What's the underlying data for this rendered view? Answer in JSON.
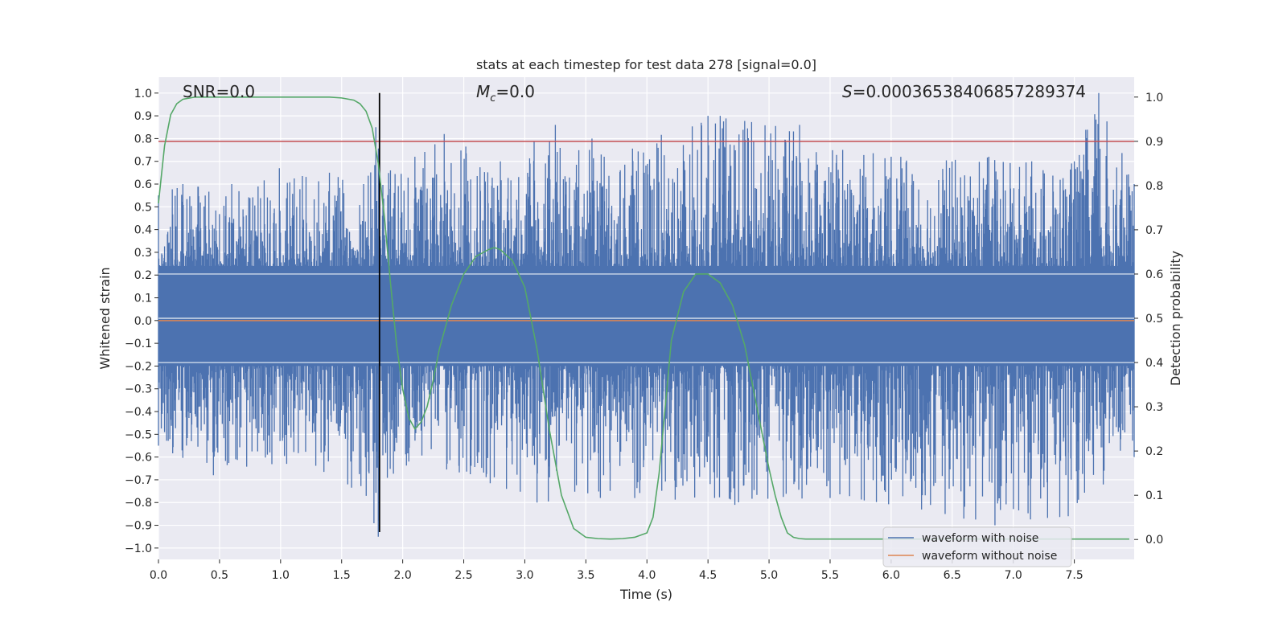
{
  "chart_data": {
    "type": "line",
    "title": "stats at each timestep for test data 278 [signal=0.0]",
    "xlabel": "Time (s)",
    "ylabel_left": "Whitened strain",
    "ylabel_right": "Detection probability",
    "xlim": [
      0.0,
      7.99
    ],
    "ylim_left": [
      -1.05,
      1.07
    ],
    "ylim_right": [
      -0.045,
      1.045
    ],
    "x_ticks": [
      "0.0",
      "0.5",
      "1.0",
      "1.5",
      "2.0",
      "2.5",
      "3.0",
      "3.5",
      "4.0",
      "4.5",
      "5.0",
      "5.5",
      "6.0",
      "6.5",
      "7.0",
      "7.5"
    ],
    "y_ticks_left": [
      "1.0",
      "0.9",
      "0.8",
      "0.7",
      "0.6",
      "0.5",
      "0.4",
      "0.3",
      "0.2",
      "0.1",
      "0.0",
      "−0.1",
      "−0.2",
      "−0.3",
      "−0.4",
      "−0.5",
      "−0.6",
      "−0.7",
      "−0.8",
      "−0.9",
      "−1.0"
    ],
    "y_ticks_right": [
      "1.0",
      "0.9",
      "0.8",
      "0.7",
      "0.6",
      "0.5",
      "0.4",
      "0.3",
      "0.2",
      "0.1",
      "0.0"
    ],
    "grid": true,
    "annotations": {
      "snr": "SNR=0.0",
      "mc_symbol": "M",
      "mc_sub": "c",
      "mc_value": "=0.0",
      "s_symbol": "S",
      "s_value": "=0.00036538406857289374"
    },
    "legend": {
      "placement": "lower-right",
      "entries": [
        {
          "label": "waveform with noise",
          "color": "#4c72b0"
        },
        {
          "label": "waveform without noise",
          "color": "#dd8452"
        }
      ]
    },
    "threshold_right": 0.9,
    "vertical_marker_time": 1.81,
    "vertical_marker_strain_range": [
      -0.93,
      1.0
    ],
    "series": [
      {
        "name": "waveform with noise",
        "color": "#4c72b0",
        "axis": "left",
        "note_kind": "noise_envelope",
        "upper_peaks": [
          [
            0.0,
            0.55
          ],
          [
            0.2,
            0.6
          ],
          [
            0.6,
            0.6
          ],
          [
            0.99,
            0.67
          ],
          [
            1.4,
            0.65
          ],
          [
            1.68,
            0.6
          ],
          [
            1.78,
            0.85
          ],
          [
            1.9,
            0.66
          ],
          [
            2.1,
            0.72
          ],
          [
            2.34,
            0.82
          ],
          [
            2.8,
            0.7
          ],
          [
            3.25,
            0.86
          ],
          [
            3.55,
            0.8
          ],
          [
            3.65,
            0.72
          ],
          [
            4.5,
            0.9
          ],
          [
            4.6,
            0.9
          ],
          [
            5.25,
            0.86
          ],
          [
            6.0,
            0.72
          ],
          [
            6.8,
            0.72
          ],
          [
            7.5,
            0.7
          ],
          [
            7.7,
            1.0
          ],
          [
            7.99,
            0.6
          ]
        ],
        "lower_peaks": [
          [
            0.0,
            -0.55
          ],
          [
            0.45,
            -0.68
          ],
          [
            1.05,
            -0.63
          ],
          [
            1.55,
            -0.72
          ],
          [
            1.8,
            -0.95
          ],
          [
            2.05,
            -0.62
          ],
          [
            2.85,
            -0.74
          ],
          [
            3.1,
            -0.8
          ],
          [
            3.9,
            -0.78
          ],
          [
            4.72,
            -0.81
          ],
          [
            5.5,
            -0.78
          ],
          [
            6.85,
            -0.9
          ],
          [
            7.45,
            -0.86
          ],
          [
            7.99,
            -0.6
          ]
        ]
      },
      {
        "name": "waveform without noise",
        "color": "#dd8452",
        "axis": "left",
        "x": [
          0.0,
          7.99
        ],
        "y": [
          0.0,
          0.0
        ]
      },
      {
        "color": "#55a868",
        "axis": "right",
        "x": [
          0.0,
          0.05,
          0.1,
          0.15,
          0.2,
          0.3,
          0.4,
          0.5,
          0.6,
          0.8,
          1.0,
          1.2,
          1.4,
          1.5,
          1.6,
          1.65,
          1.7,
          1.75,
          1.8,
          1.85,
          1.9,
          1.95,
          2.0,
          2.05,
          2.1,
          2.15,
          2.2,
          2.25,
          2.3,
          2.4,
          2.5,
          2.6,
          2.7,
          2.75,
          2.8,
          2.9,
          3.0,
          3.1,
          3.2,
          3.3,
          3.4,
          3.5,
          3.6,
          3.7,
          3.8,
          3.9,
          4.0,
          4.05,
          4.1,
          4.15,
          4.2,
          4.3,
          4.4,
          4.5,
          4.6,
          4.7,
          4.8,
          4.9,
          5.0,
          5.05,
          5.1,
          5.15,
          5.2,
          5.25,
          5.3,
          5.5,
          6.0,
          6.5,
          7.0,
          7.5,
          7.95
        ],
        "y": [
          0.76,
          0.89,
          0.96,
          0.985,
          0.995,
          1.0,
          1.0,
          1.0,
          1.0,
          1.0,
          1.0,
          1.0,
          1.0,
          0.998,
          0.993,
          0.985,
          0.968,
          0.93,
          0.85,
          0.73,
          0.58,
          0.44,
          0.34,
          0.275,
          0.25,
          0.265,
          0.3,
          0.36,
          0.43,
          0.53,
          0.6,
          0.64,
          0.655,
          0.66,
          0.655,
          0.63,
          0.57,
          0.43,
          0.25,
          0.1,
          0.025,
          0.005,
          0.002,
          0.001,
          0.002,
          0.005,
          0.015,
          0.05,
          0.15,
          0.3,
          0.45,
          0.56,
          0.6,
          0.6,
          0.58,
          0.53,
          0.44,
          0.3,
          0.16,
          0.1,
          0.05,
          0.015,
          0.005,
          0.002,
          0.001,
          0.001,
          0.001,
          0.001,
          0.001,
          0.001,
          0.001
        ]
      }
    ]
  }
}
